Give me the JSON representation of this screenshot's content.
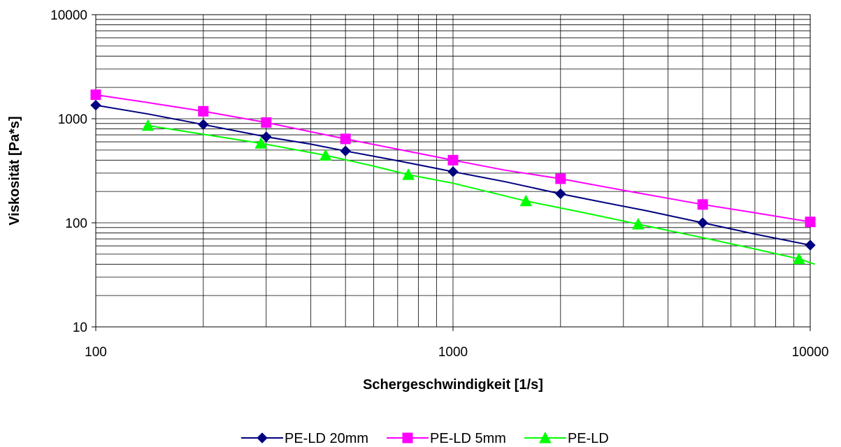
{
  "chart_data": {
    "type": "line",
    "title": "",
    "xlabel": "Schergeschwindigkeit [1/s]",
    "ylabel": "Viskosität [Pa*s]",
    "xscale": "log",
    "yscale": "log",
    "xlim": [
      100,
      10000
    ],
    "ylim": [
      10,
      10000
    ],
    "x_ticks": [
      "100",
      "1000",
      "10000"
    ],
    "y_ticks": [
      "10",
      "100",
      "1000",
      "10000"
    ],
    "grid": true,
    "legend_position": "bottom",
    "series": [
      {
        "name": "PE-LD 20mm",
        "color": "#000080",
        "marker": "diamond",
        "points": [
          [
            100,
            1350
          ],
          [
            200,
            880
          ],
          [
            300,
            670
          ],
          [
            500,
            490
          ],
          [
            1000,
            310
          ],
          [
            2000,
            190
          ],
          [
            5000,
            100
          ],
          [
            10000,
            61
          ]
        ],
        "curve": [
          [
            100,
            1350
          ],
          [
            140,
            1110
          ],
          [
            200,
            880
          ],
          [
            230,
            800
          ],
          [
            300,
            670
          ],
          [
            400,
            570
          ],
          [
            500,
            490
          ],
          [
            700,
            395
          ],
          [
            1000,
            310
          ],
          [
            1400,
            248
          ],
          [
            2000,
            190
          ],
          [
            2500,
            163
          ],
          [
            3500,
            130
          ],
          [
            5000,
            100
          ],
          [
            7000,
            78
          ],
          [
            10000,
            61
          ]
        ]
      },
      {
        "name": "PE-LD 5mm",
        "color": "#FF00FF",
        "marker": "square",
        "points": [
          [
            100,
            1700
          ],
          [
            200,
            1180
          ],
          [
            300,
            920
          ],
          [
            500,
            640
          ],
          [
            1000,
            400
          ],
          [
            2000,
            265
          ],
          [
            5000,
            150
          ],
          [
            10000,
            102
          ]
        ],
        "curve": [
          [
            100,
            1700
          ],
          [
            140,
            1430
          ],
          [
            200,
            1180
          ],
          [
            300,
            920
          ],
          [
            400,
            750
          ],
          [
            500,
            640
          ],
          [
            700,
            510
          ],
          [
            1000,
            400
          ],
          [
            1400,
            320
          ],
          [
            2000,
            265
          ],
          [
            3000,
            205
          ],
          [
            5000,
            150
          ],
          [
            7000,
            125
          ],
          [
            10000,
            102
          ]
        ]
      },
      {
        "name": "PE-LD",
        "color": "#00FF00",
        "marker": "triangle",
        "points": [
          [
            140,
            860
          ],
          [
            290,
            580
          ],
          [
            440,
            445
          ],
          [
            750,
            290
          ],
          [
            1600,
            162
          ],
          [
            3300,
            97
          ],
          [
            9300,
            45
          ]
        ],
        "curve": [
          [
            140,
            860
          ],
          [
            200,
            710
          ],
          [
            290,
            580
          ],
          [
            440,
            445
          ],
          [
            600,
            350
          ],
          [
            750,
            290
          ],
          [
            1000,
            240
          ],
          [
            1600,
            162
          ],
          [
            2300,
            126
          ],
          [
            3300,
            97
          ],
          [
            5000,
            72
          ],
          [
            7000,
            56
          ],
          [
            9300,
            45
          ],
          [
            10300,
            40
          ]
        ]
      }
    ]
  }
}
